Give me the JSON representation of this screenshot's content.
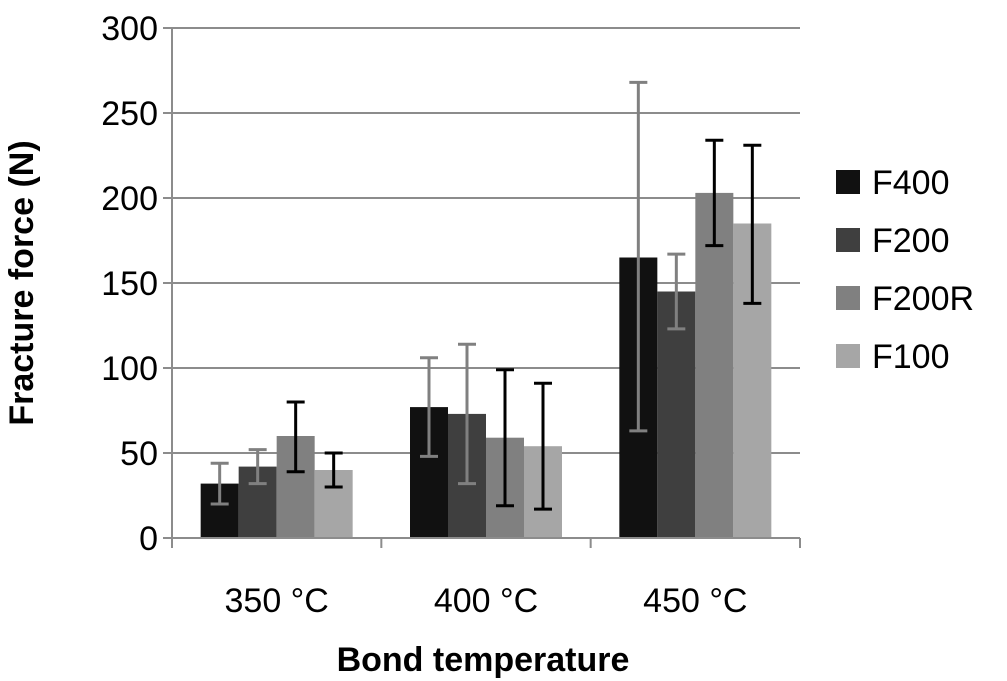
{
  "chart_data": {
    "type": "bar",
    "title": "",
    "xlabel": "Bond temperature",
    "ylabel": "Fracture force (N)",
    "ylim": [
      0,
      300
    ],
    "yticks": [
      0,
      50,
      100,
      150,
      200,
      250,
      300
    ],
    "ytick_labels": [
      "0",
      "50",
      "100",
      "150",
      "200",
      "250",
      "300"
    ],
    "categories": [
      "350 °C",
      "400 °C",
      "450 °C"
    ],
    "grid": "horizontal",
    "legend_position": "right",
    "series": [
      {
        "name": "F400",
        "color": "#111111",
        "err_color": "#808080",
        "values": [
          32,
          77,
          165
        ],
        "err_low": [
          20,
          48,
          63
        ],
        "err_high": [
          44,
          106,
          268
        ]
      },
      {
        "name": "F200",
        "color": "#3f3f3f",
        "err_color": "#808080",
        "values": [
          42,
          73,
          145
        ],
        "err_low": [
          32,
          32,
          123
        ],
        "err_high": [
          52,
          114,
          167
        ]
      },
      {
        "name": "F200R",
        "color": "#808080",
        "err_color": "#000000",
        "values": [
          60,
          59,
          203
        ],
        "err_low": [
          39,
          19,
          172
        ],
        "err_high": [
          80,
          99,
          234
        ]
      },
      {
        "name": "F100",
        "color": "#a6a6a6",
        "err_color": "#000000",
        "values": [
          40,
          54,
          185
        ],
        "err_low": [
          30,
          17,
          138
        ],
        "err_high": [
          50,
          91,
          231
        ]
      }
    ]
  }
}
